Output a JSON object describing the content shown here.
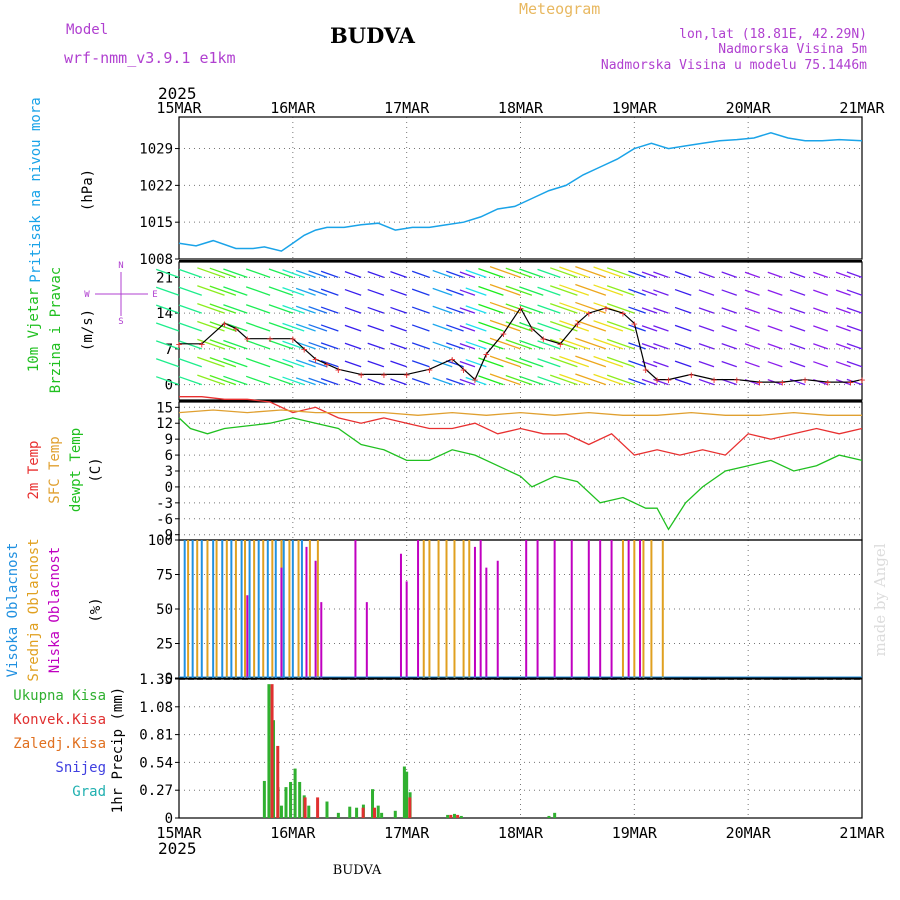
{
  "header": {
    "model_label": "Model",
    "model_name": "wrf-nmm_v3.9.1  e1km",
    "station": "BUDVA",
    "meteogram": "Meteogram",
    "lonlat": "lon,lat (18.81E, 42.29N)",
    "elevation": "Nadmorska Visina 5m",
    "model_elevation": "Nadmorska Visina u modelu 75.1446m",
    "year_top": "2025",
    "year_bottom": "2025",
    "footer_station": "BUDVA",
    "credit": "made by Angel"
  },
  "colors": {
    "pressure": "#1aa3e8",
    "temp2m": "#e83030",
    "sfc": "#e0a030",
    "dew": "#20c020",
    "high_cloud": "#2090e0",
    "mid_cloud": "#e0a020",
    "low_cloud": "#c000c0",
    "total_precip": "#30b030",
    "conv_precip": "#e03030",
    "frz_precip": "#e07020",
    "snow": "#4040e0",
    "hail": "#20b0b0",
    "grid": "#777777"
  },
  "chart_data": [
    {
      "type": "line",
      "panel": "pressure",
      "ylabel_series": "Pritisak na nivou mora",
      "ylabel_unit": "(hPa)",
      "x_tick_labels": [
        "15MAR",
        "16MAR",
        "17MAR",
        "18MAR",
        "19MAR",
        "20MAR",
        "21MAR"
      ],
      "ylim": [
        1008,
        1035
      ],
      "yticks": [
        1008,
        1015,
        1022,
        1029
      ],
      "x": [
        0,
        0.15,
        0.3,
        0.5,
        0.65,
        0.75,
        0.9,
        1.0,
        1.1,
        1.2,
        1.3,
        1.45,
        1.6,
        1.75,
        1.9,
        2.05,
        2.2,
        2.35,
        2.5,
        2.65,
        2.8,
        2.95,
        3.1,
        3.25,
        3.4,
        3.55,
        3.7,
        3.85,
        4.0,
        4.15,
        4.3,
        4.45,
        4.6,
        4.75,
        4.9,
        5.05,
        5.2,
        5.35,
        5.5,
        5.65,
        5.8,
        6.0
      ],
      "y": [
        1011,
        1010.5,
        1011.5,
        1010,
        1010,
        1010.3,
        1009.5,
        1011,
        1012.5,
        1013.5,
        1014,
        1014,
        1014.5,
        1014.8,
        1013.5,
        1014,
        1014,
        1014.5,
        1015,
        1016,
        1017.5,
        1018,
        1019.5,
        1021,
        1022,
        1024,
        1025.5,
        1027,
        1029,
        1030,
        1029,
        1029.5,
        1030,
        1030.5,
        1030.7,
        1031,
        1032,
        1031,
        1030.5,
        1030.5,
        1030.7,
        1030.5
      ]
    },
    {
      "type": "line",
      "panel": "wind",
      "ylabel_series": [
        "10m Vjetar",
        "Brzina i Pravac"
      ],
      "ylabel_unit": "(m/s)",
      "compass": {
        "n": "N",
        "s": "S",
        "e": "E",
        "w": "W"
      },
      "ylim": [
        -3,
        24
      ],
      "yticks": [
        0,
        7,
        14,
        21
      ],
      "x": [
        0,
        0.2,
        0.4,
        0.5,
        0.6,
        0.8,
        1.0,
        1.1,
        1.2,
        1.3,
        1.4,
        1.6,
        1.8,
        2.0,
        2.2,
        2.4,
        2.5,
        2.6,
        2.7,
        2.85,
        3.0,
        3.1,
        3.2,
        3.35,
        3.5,
        3.6,
        3.75,
        3.9,
        4.0,
        4.1,
        4.2,
        4.3,
        4.5,
        4.7,
        4.9,
        5.1,
        5.3,
        5.5,
        5.7,
        5.9,
        6.0
      ],
      "y": [
        8,
        8,
        12,
        11,
        9,
        9,
        9,
        7,
        5,
        4,
        3,
        2,
        2,
        2,
        3,
        5,
        3,
        1,
        6,
        10,
        15,
        11,
        9,
        8,
        12,
        14,
        15,
        14,
        12,
        3,
        1,
        1,
        2,
        1,
        1,
        0.5,
        0.5,
        1,
        0.5,
        0.5,
        1
      ]
    },
    {
      "type": "line",
      "panel": "temperature",
      "ylabel_series": [
        "2m Temp",
        "SFC Temp",
        "dewpt Temp"
      ],
      "ylabel_unit": "(C)",
      "ylim": [
        -10,
        16
      ],
      "yticks": [
        -9,
        -6,
        -3,
        0,
        3,
        6,
        9,
        12,
        15
      ],
      "series": [
        {
          "name": "2m Temp",
          "color": "temp2m",
          "x": [
            0,
            0.2,
            0.4,
            0.6,
            0.8,
            1.0,
            1.2,
            1.4,
            1.6,
            1.8,
            2.0,
            2.2,
            2.4,
            2.6,
            2.8,
            3.0,
            3.2,
            3.4,
            3.6,
            3.8,
            4.0,
            4.2,
            4.4,
            4.6,
            4.8,
            5.0,
            5.2,
            5.4,
            5.6,
            5.8,
            6.0
          ],
          "values": [
            17,
            17,
            16.5,
            16.5,
            16,
            14,
            15,
            13,
            12,
            13,
            12,
            11,
            11,
            12,
            10,
            11,
            10,
            10,
            8,
            10,
            6,
            7,
            6,
            7,
            6,
            10,
            9,
            10,
            11,
            10,
            11
          ]
        },
        {
          "name": "SFC Temp",
          "color": "sfc",
          "x": [
            0,
            0.3,
            0.6,
            0.9,
            1.2,
            1.5,
            1.8,
            2.1,
            2.4,
            2.7,
            3.0,
            3.3,
            3.6,
            3.9,
            4.2,
            4.5,
            4.8,
            5.1,
            5.4,
            5.7,
            6.0
          ],
          "values": [
            14,
            14.5,
            14,
            14.5,
            14,
            14,
            14,
            13.5,
            14,
            13.5,
            14,
            13.5,
            14,
            13.5,
            13.5,
            14,
            13.5,
            13.5,
            14,
            13.5,
            13.5
          ]
        },
        {
          "name": "dewpt Temp",
          "color": "dew",
          "x": [
            0,
            0.1,
            0.25,
            0.4,
            0.6,
            0.8,
            1.0,
            1.2,
            1.4,
            1.6,
            1.8,
            2.0,
            2.2,
            2.4,
            2.6,
            2.8,
            3.0,
            3.1,
            3.3,
            3.5,
            3.7,
            3.9,
            4.1,
            4.2,
            4.3,
            4.45,
            4.6,
            4.8,
            5.0,
            5.2,
            5.4,
            5.6,
            5.8,
            6.0
          ],
          "values": [
            13,
            11,
            10,
            11,
            11.5,
            12,
            13,
            12,
            11,
            8,
            7,
            5,
            5,
            7,
            6,
            4,
            2,
            0,
            2,
            1,
            -3,
            -2,
            -4,
            -4,
            -8,
            -3,
            0,
            3,
            4,
            5,
            3,
            4,
            6,
            5
          ]
        }
      ]
    },
    {
      "type": "bar",
      "panel": "cloud",
      "ylabel_series": [
        "Visoka Oblacnost",
        "Srednja Oblacnost",
        "Niska Oblacnost"
      ],
      "ylabel_unit": "(%)",
      "ylim": [
        0,
        100
      ],
      "yticks": [
        0,
        25,
        50,
        75,
        100
      ],
      "series": [
        {
          "name": "Visoka Oblacnost",
          "color": "high_cloud",
          "x": [
            0.05,
            0.12,
            0.2,
            0.3,
            0.38,
            0.46,
            0.55,
            0.62,
            0.7,
            0.78,
            0.85,
            0.92,
            1.0,
            1.08
          ],
          "values": [
            100,
            100,
            100,
            100,
            100,
            100,
            100,
            100,
            100,
            100,
            100,
            100,
            100,
            100
          ]
        },
        {
          "name": "Srednja Oblacnost",
          "color": "mid_cloud",
          "x": [
            0.08,
            0.16,
            0.25,
            0.33,
            0.42,
            0.5,
            0.58,
            0.66,
            0.74,
            0.82,
            0.9,
            0.97,
            1.05,
            1.15,
            1.22,
            2.15,
            2.2,
            2.28,
            2.35,
            2.42,
            2.5,
            2.55,
            3.9,
            4.0,
            4.08,
            4.15,
            4.25
          ],
          "values": [
            100,
            100,
            100,
            100,
            100,
            100,
            100,
            100,
            100,
            100,
            100,
            100,
            100,
            100,
            100,
            100,
            100,
            100,
            100,
            100,
            100,
            100,
            100,
            100,
            100,
            100,
            100
          ]
        },
        {
          "name": "Niska Oblacnost",
          "color": "low_cloud",
          "x": [
            0.6,
            0.9,
            1.12,
            1.2,
            1.25,
            1.55,
            1.65,
            1.95,
            2.0,
            2.1,
            2.6,
            2.65,
            2.7,
            2.8,
            3.05,
            3.15,
            3.3,
            3.45,
            3.6,
            3.7,
            3.8,
            3.95,
            4.05
          ],
          "values": [
            60,
            80,
            95,
            85,
            55,
            100,
            55,
            90,
            70,
            100,
            95,
            100,
            80,
            85,
            100,
            100,
            100,
            100,
            100,
            100,
            100,
            100,
            100
          ]
        }
      ]
    },
    {
      "type": "bar",
      "panel": "precipitation",
      "ylabel_series": [
        "Ukupna Kisa",
        "Konvek.Kisa",
        "Zaledj.Kisa",
        "Snijeg",
        "Grad"
      ],
      "ylabel_unit": "1hr Precip (mm)",
      "ylim": [
        0,
        1.35
      ],
      "yticks": [
        0,
        0.27,
        0.54,
        0.81,
        1.08,
        1.35
      ],
      "x_tick_labels": [
        "15MAR",
        "16MAR",
        "17MAR",
        "18MAR",
        "19MAR",
        "20MAR",
        "21MAR"
      ],
      "series": [
        {
          "name": "Ukupna Kisa",
          "color": "total_precip",
          "x": [
            0.75,
            0.79,
            0.83,
            0.87,
            0.9,
            0.94,
            0.98,
            1.02,
            1.06,
            1.1,
            1.14,
            1.3,
            1.4,
            1.5,
            1.56,
            1.62,
            1.7,
            1.75,
            1.78,
            1.9,
            1.98,
            2.0,
            2.03,
            2.36,
            2.42,
            2.48,
            3.25,
            3.3
          ],
          "values": [
            0.36,
            1.3,
            0.95,
            0.3,
            0.12,
            0.3,
            0.35,
            0.48,
            0.35,
            0.22,
            0.12,
            0.16,
            0.05,
            0.11,
            0.1,
            0.13,
            0.28,
            0.12,
            0.05,
            0.07,
            0.5,
            0.45,
            0.25,
            0.03,
            0.04,
            0.02,
            0.02,
            0.05
          ]
        },
        {
          "name": "Konvek.Kisa",
          "color": "conv_precip",
          "x": [
            0.8,
            0.85,
            1.09,
            1.2,
            1.6,
            1.7,
            2.01,
            2.37,
            2.43
          ],
          "values": [
            1.3,
            0.7,
            0.2,
            0.2,
            0.1,
            0.1,
            0.2,
            0.03,
            0.03
          ]
        },
        {
          "name": "Zaledj.Kisa",
          "color": "frz_precip",
          "x": [],
          "values": []
        },
        {
          "name": "Snijeg",
          "color": "snow",
          "x": [],
          "values": []
        },
        {
          "name": "Grad",
          "color": "hail",
          "x": [],
          "values": []
        }
      ]
    }
  ]
}
